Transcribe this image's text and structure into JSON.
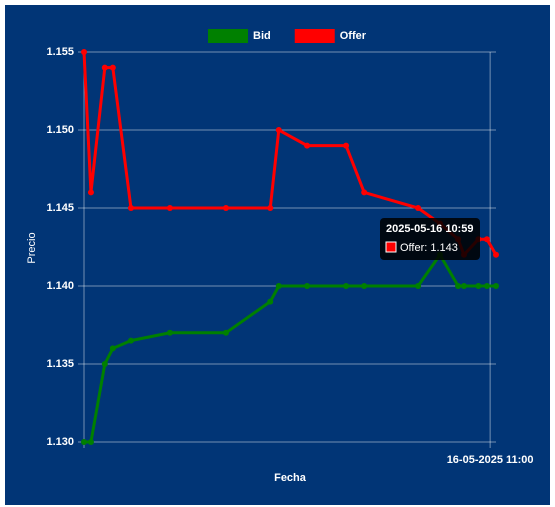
{
  "chart_data": {
    "type": "line",
    "x": [
      "2025-05-16T10:47:19",
      "2025-05-16T10:47:32",
      "2025-05-16T10:47:58",
      "2025-05-16T10:48:13",
      "2025-05-16T10:48:47",
      "2025-05-16T10:50:00",
      "2025-05-16T10:51:45",
      "2025-05-16T10:53:08",
      "2025-05-16T10:53:24",
      "2025-05-16T10:54:17",
      "2025-05-16T10:55:30",
      "2025-05-16T10:56:04",
      "2025-05-16T10:57:45",
      "2025-05-16T10:58:26",
      "2025-05-16T10:59:00",
      "2025-05-16T10:59:11",
      "2025-05-16T10:59:38",
      "2025-05-16T10:59:54",
      "2025-05-16T11:00:11"
    ],
    "series": [
      {
        "name": "Bid",
        "color": "#008000",
        "values": [
          1.13,
          1.13,
          1.135,
          1.136,
          1.1365,
          1.137,
          1.137,
          1.139,
          1.14,
          1.14,
          1.14,
          1.14,
          1.14,
          1.142,
          1.14,
          1.14,
          1.14,
          1.14,
          1.14
        ]
      },
      {
        "name": "Offer",
        "color": "#ff0000",
        "values": [
          1.155,
          1.146,
          1.154,
          1.154,
          1.145,
          1.145,
          1.145,
          1.145,
          1.15,
          1.149,
          1.149,
          1.146,
          1.145,
          1.144,
          1.143,
          1.142,
          1.143,
          1.143,
          1.142
        ]
      }
    ],
    "xlabel": "Fecha",
    "ylabel": "Precio",
    "xlim": [
      "2025-05-16T10:47:19",
      "2025-05-16T11:00:11"
    ],
    "xticks": [
      {
        "value": "2025-05-16T11:00:00",
        "label": "16-05-2025 11:00"
      }
    ],
    "ylim": [
      1.13,
      1.155
    ],
    "yticks": [
      {
        "value": 1.13,
        "label": "1.130"
      },
      1.135,
      {
        "value": 1.14,
        "label": "1.140"
      },
      1.145,
      {
        "value": 1.15,
        "label": "1.150"
      },
      1.155
    ],
    "grid": true,
    "legend": "top",
    "tooltip": {
      "title": "2025-05-16 10:59",
      "label": "Offer: 1.143",
      "series": 1,
      "index": 14
    }
  }
}
